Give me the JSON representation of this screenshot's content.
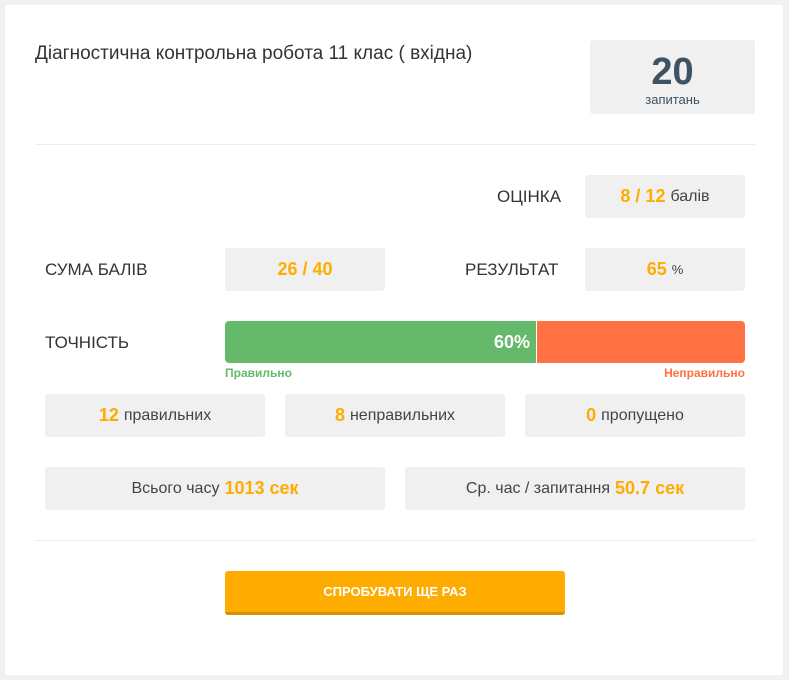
{
  "title": "Діагностична контрольна робота 11 клас ( вхідна)",
  "questions": {
    "count": "20",
    "label": "запитань"
  },
  "grade": {
    "label": "ОЦІНКА",
    "value": "8 / 12",
    "unit": "балів"
  },
  "score_sum": {
    "label": "СУМА БАЛІВ",
    "value": "26 / 40"
  },
  "result": {
    "label": "РЕЗУЛЬТАТ",
    "value": "65",
    "unit": "%"
  },
  "accuracy": {
    "label": "ТОЧНІСТЬ",
    "percent": 60,
    "percent_text": "60%",
    "correct_label": "Правильно",
    "incorrect_label": "Неправильно",
    "colors": {
      "correct": "#64ba6a",
      "incorrect": "#ff7043"
    }
  },
  "counts": [
    {
      "value": "12",
      "label": "правильних"
    },
    {
      "value": "8",
      "label": "неправильних"
    },
    {
      "value": "0",
      "label": "пропущено"
    }
  ],
  "time": {
    "total_label": "Всього часу",
    "total_value": "1013 сек",
    "avg_label": "Ср. час / запитання",
    "avg_value": "50.7 сек"
  },
  "retry_button": "СПРОБУВАТИ ЩЕ РАЗ",
  "accent": "#ffac00"
}
